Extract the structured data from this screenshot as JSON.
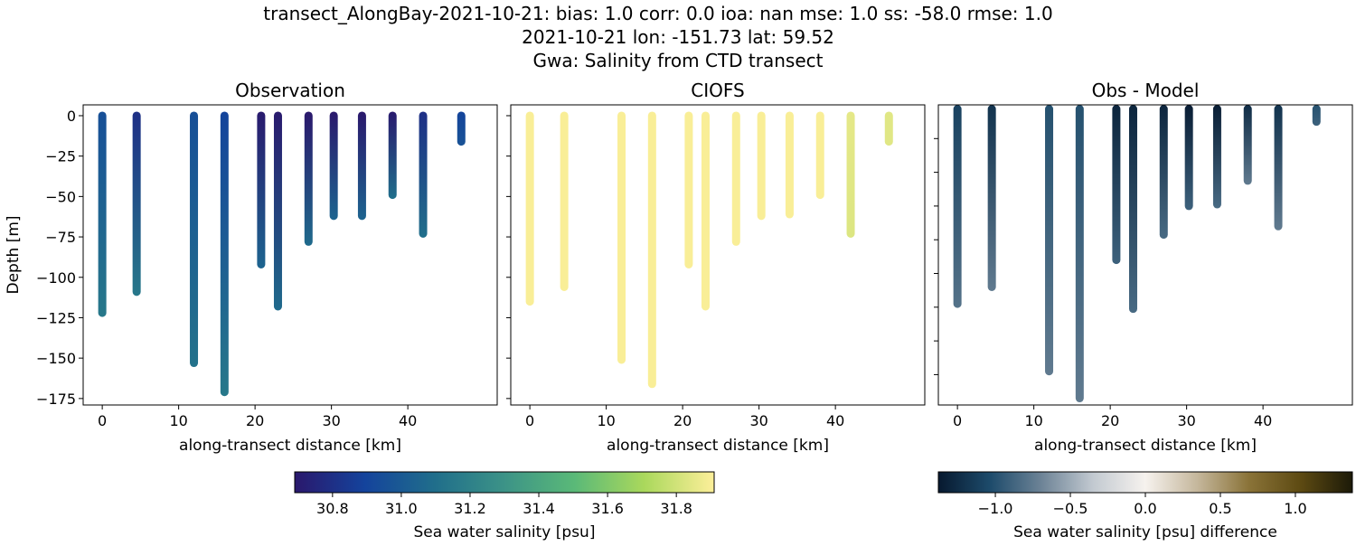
{
  "title_lines": [
    "transect_AlongBay-2021-10-21: bias: 1.0  corr: 0.0  ioa: nan  mse: 1.0  ss: -58.0  rmse: 1.0",
    "2021-10-21 lon: -151.73 lat: 59.52",
    "Gwa: Salinity from CTD transect"
  ],
  "chart_data": [
    {
      "type": "scatter",
      "title": "Observation",
      "xlabel": "along-transect distance [km]",
      "ylabel": "Depth [m]",
      "xlim": [
        -2.5,
        51.7
      ],
      "ylim": [
        -179,
        6.7
      ],
      "xticks": [
        0,
        10,
        20,
        30,
        40
      ],
      "yticks": [
        0,
        -25,
        -50,
        -75,
        -100,
        -125,
        -150,
        -175
      ],
      "ytick_labels": true,
      "colormap": "haline",
      "stations": [
        {
          "x": 0,
          "max_depth": -122,
          "surface_value": 30.95,
          "bottom_value": 31.15
        },
        {
          "x": 4.5,
          "max_depth": -109,
          "surface_value": 30.8,
          "bottom_value": 31.15
        },
        {
          "x": 12,
          "max_depth": -153,
          "surface_value": 30.95,
          "bottom_value": 31.12
        },
        {
          "x": 16,
          "max_depth": -171,
          "surface_value": 30.9,
          "bottom_value": 31.15
        },
        {
          "x": 20.8,
          "max_depth": -92,
          "surface_value": 30.7,
          "bottom_value": 31.05
        },
        {
          "x": 23,
          "max_depth": -118,
          "surface_value": 30.7,
          "bottom_value": 31.08
        },
        {
          "x": 27,
          "max_depth": -78,
          "surface_value": 30.68,
          "bottom_value": 31.08
        },
        {
          "x": 30.3,
          "max_depth": -62,
          "surface_value": 30.68,
          "bottom_value": 31.05
        },
        {
          "x": 34,
          "max_depth": -62,
          "surface_value": 30.68,
          "bottom_value": 31.05
        },
        {
          "x": 38,
          "max_depth": -49,
          "surface_value": 30.7,
          "bottom_value": 31.1
        },
        {
          "x": 42,
          "max_depth": -73,
          "surface_value": 30.8,
          "bottom_value": 31.1
        },
        {
          "x": 47,
          "max_depth": -16,
          "surface_value": 30.9,
          "bottom_value": 30.97
        }
      ]
    },
    {
      "type": "scatter",
      "title": "CIOFS",
      "xlabel": "along-transect distance [km]",
      "xlim": [
        -2.5,
        51.7
      ],
      "ylim": [
        -179,
        6.7
      ],
      "xticks": [
        0,
        10,
        20,
        30,
        40
      ],
      "yticks": [
        0,
        -25,
        -50,
        -75,
        -100,
        -125,
        -150,
        -175
      ],
      "ytick_labels": false,
      "colormap": "haline",
      "stations": [
        {
          "x": 0,
          "max_depth": -115,
          "surface_value": 31.9,
          "bottom_value": 31.9
        },
        {
          "x": 4.5,
          "max_depth": -106,
          "surface_value": 31.9,
          "bottom_value": 31.9
        },
        {
          "x": 12,
          "max_depth": -151,
          "surface_value": 31.9,
          "bottom_value": 31.9
        },
        {
          "x": 16,
          "max_depth": -166,
          "surface_value": 31.9,
          "bottom_value": 31.9
        },
        {
          "x": 20.8,
          "max_depth": -92,
          "surface_value": 31.9,
          "bottom_value": 31.9
        },
        {
          "x": 23,
          "max_depth": -118,
          "surface_value": 31.9,
          "bottom_value": 31.9
        },
        {
          "x": 27,
          "max_depth": -78,
          "surface_value": 31.9,
          "bottom_value": 31.9
        },
        {
          "x": 30.3,
          "max_depth": -62,
          "surface_value": 31.9,
          "bottom_value": 31.9
        },
        {
          "x": 34,
          "max_depth": -61,
          "surface_value": 31.9,
          "bottom_value": 31.9
        },
        {
          "x": 38,
          "max_depth": -49,
          "surface_value": 31.9,
          "bottom_value": 31.9
        },
        {
          "x": 42,
          "max_depth": -73,
          "surface_value": 31.85,
          "bottom_value": 31.83
        },
        {
          "x": 47,
          "max_depth": -16,
          "surface_value": 31.84,
          "bottom_value": 31.84
        }
      ]
    },
    {
      "type": "scatter",
      "title": "Obs - Model",
      "xlabel": "along-transect distance [km]",
      "xlim": [
        -2.5,
        51.7
      ],
      "ylim": [
        -178,
        0
      ],
      "xticks": [
        0,
        10,
        20,
        30,
        40
      ],
      "yticks": [
        -20,
        -40,
        -60,
        -80,
        -100,
        -120,
        -140,
        -160
      ],
      "ytick_labels": false,
      "colormap": "diff",
      "stations": [
        {
          "x": 0,
          "max_depth": -118,
          "surface_value": -1.1,
          "bottom_value": -0.8
        },
        {
          "x": 4.5,
          "max_depth": -108,
          "surface_value": -1.2,
          "bottom_value": -0.75
        },
        {
          "x": 12,
          "max_depth": -158,
          "surface_value": -1.0,
          "bottom_value": -0.75
        },
        {
          "x": 16,
          "max_depth": -174,
          "surface_value": -1.0,
          "bottom_value": -0.75
        },
        {
          "x": 20.8,
          "max_depth": -92,
          "surface_value": -1.3,
          "bottom_value": -0.9
        },
        {
          "x": 23,
          "max_depth": -121,
          "surface_value": -1.3,
          "bottom_value": -0.85
        },
        {
          "x": 27,
          "max_depth": -77,
          "surface_value": -1.3,
          "bottom_value": -0.85
        },
        {
          "x": 30.3,
          "max_depth": -60,
          "surface_value": -1.35,
          "bottom_value": -0.9
        },
        {
          "x": 34,
          "max_depth": -59,
          "surface_value": -1.35,
          "bottom_value": -0.85
        },
        {
          "x": 38,
          "max_depth": -45,
          "surface_value": -1.25,
          "bottom_value": -0.75
        },
        {
          "x": 42,
          "max_depth": -72,
          "surface_value": -1.2,
          "bottom_value": -0.75
        },
        {
          "x": 47,
          "max_depth": -10,
          "surface_value": -1.0,
          "bottom_value": -0.9
        }
      ]
    }
  ],
  "colorbars": [
    {
      "label": "Sea water salinity [psu]",
      "range": [
        30.69,
        31.91
      ],
      "ticks": [
        "30.8",
        "31.0",
        "31.2",
        "31.4",
        "31.6",
        "31.8"
      ],
      "colormap": "haline"
    },
    {
      "label": "Sea water salinity [psu] difference",
      "range": [
        -1.38,
        1.38
      ],
      "ticks": [
        "−1.0",
        "−0.5",
        "0.0",
        "0.5",
        "1.0"
      ],
      "colormap": "diff"
    }
  ],
  "colormaps": {
    "haline": [
      "#2a186c",
      "#14439c",
      "#206e8b",
      "#3c9387",
      "#5ab978",
      "#aad85c",
      "#fdef9a"
    ],
    "diff": [
      "#07192f",
      "#1d4b6b",
      "#6e8497",
      "#c3cad1",
      "#f6f2ee",
      "#c5b79c",
      "#8a7338",
      "#5d4a12",
      "#1c1a08"
    ]
  }
}
